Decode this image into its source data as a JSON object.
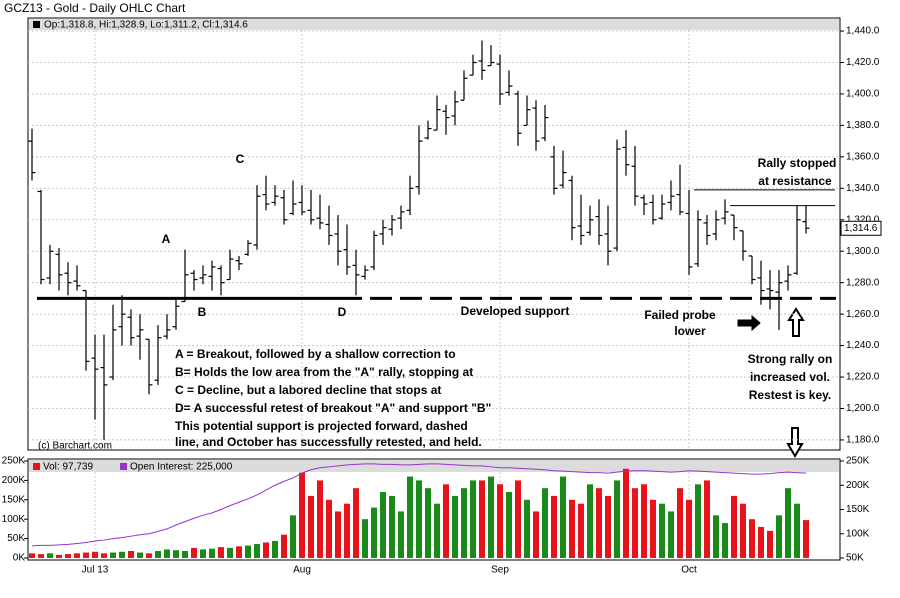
{
  "chart_data": {
    "type": "ohlc",
    "title": "GCZ13 - Gold - Daily OHLC Chart",
    "quote": "Op:1,318.8, Hi:1,328.9, Lo:1,311.2, Cl:1,314.6",
    "source": "(c) Barchart.com",
    "categories": [
      null,
      null,
      null,
      null,
      null,
      null,
      null,
      "Jul 13",
      null,
      null,
      null,
      null,
      null,
      null,
      null,
      null,
      null,
      null,
      null,
      null,
      null,
      null,
      null,
      null,
      null,
      null,
      null,
      null,
      null,
      null,
      "Aug",
      null,
      null,
      null,
      null,
      null,
      null,
      null,
      null,
      null,
      null,
      null,
      null,
      null,
      null,
      null,
      null,
      null,
      null,
      null,
      null,
      null,
      "Sep",
      null,
      null,
      null,
      null,
      null,
      null,
      null,
      null,
      null,
      null,
      null,
      null,
      null,
      null,
      null,
      null,
      null,
      null,
      null,
      null,
      "Oct",
      null,
      null,
      null,
      null,
      null,
      null,
      null,
      null,
      null,
      null,
      null,
      null,
      null
    ],
    "open": [
      1370,
      1338,
      1283,
      1298,
      1286,
      1281,
      1275,
      1232,
      1226,
      1220,
      1252,
      1258,
      1246,
      1244,
      1218,
      1246,
      1252,
      1268,
      1286,
      1283,
      1284,
      1289,
      1282,
      1294,
      1298,
      1304,
      1336,
      1331,
      1334,
      1324,
      1331,
      1326,
      1321,
      1317,
      1311,
      1301,
      1291,
      1284,
      1290,
      1311,
      1314,
      1321,
      1326,
      1341,
      1372,
      1377,
      1389,
      1386,
      1396,
      1412,
      1421,
      1418,
      1419,
      1401,
      1400,
      1380,
      1391,
      1372,
      1360,
      1342,
      1345,
      1316,
      1312,
      1322,
      1311,
      1302,
      1366,
      1354,
      1334,
      1331,
      1321,
      1331,
      1336,
      1324,
      1292,
      1318,
      1311,
      1321,
      1323,
      1313,
      1297,
      1283,
      1276,
      1274,
      1281,
      1286,
      1318.8
    ],
    "high": [
      1378,
      1339,
      1304,
      1302,
      1293,
      1291,
      1275,
      1247,
      1247,
      1266,
      1272,
      1263,
      1260,
      1244,
      1253,
      1260,
      1269,
      1301,
      1288,
      1291,
      1294,
      1291,
      1301,
      1297,
      1307,
      1342,
      1348,
      1342,
      1339,
      1345,
      1342,
      1339,
      1336,
      1329,
      1323,
      1317,
      1301,
      1291,
      1313,
      1320,
      1323,
      1329,
      1348,
      1380,
      1383,
      1399,
      1393,
      1402,
      1415,
      1425,
      1434,
      1431,
      1425,
      1415,
      1402,
      1399,
      1396,
      1393,
      1367,
      1364,
      1348,
      1336,
      1329,
      1333,
      1329,
      1371,
      1377,
      1367,
      1336,
      1336,
      1336,
      1345,
      1355,
      1339,
      1326,
      1323,
      1326,
      1333,
      1323,
      1313,
      1297,
      1294,
      1288,
      1288,
      1291,
      1329,
      1328.9
    ],
    "low": [
      1345,
      1279,
      1279,
      1275,
      1272,
      1275,
      1224,
      1193,
      1180,
      1218,
      1240,
      1240,
      1231,
      1209,
      1215,
      1244,
      1250,
      1268,
      1275,
      1279,
      1275,
      1272,
      1282,
      1288,
      1297,
      1301,
      1326,
      1329,
      1317,
      1323,
      1323,
      1317,
      1314,
      1304,
      1291,
      1285,
      1272,
      1282,
      1288,
      1304,
      1310,
      1314,
      1323,
      1336,
      1371,
      1377,
      1374,
      1380,
      1396,
      1412,
      1409,
      1418,
      1393,
      1399,
      1367,
      1380,
      1364,
      1370,
      1336,
      1340,
      1307,
      1304,
      1310,
      1304,
      1291,
      1300,
      1348,
      1329,
      1323,
      1317,
      1320,
      1326,
      1323,
      1285,
      1290,
      1304,
      1307,
      1317,
      1307,
      1294,
      1279,
      1266,
      1263,
      1250,
      1275,
      1285,
      1311.2
    ],
    "close": [
      1350,
      1282,
      1300,
      1285,
      1280,
      1278,
      1230,
      1225,
      1215,
      1250,
      1260,
      1245,
      1250,
      1215,
      1245,
      1250,
      1265,
      1285,
      1282,
      1285,
      1290,
      1280,
      1295,
      1292,
      1305,
      1335,
      1330,
      1335,
      1320,
      1330,
      1325,
      1320,
      1318,
      1310,
      1300,
      1290,
      1285,
      1288,
      1310,
      1315,
      1320,
      1325,
      1340,
      1370,
      1378,
      1390,
      1385,
      1395,
      1410,
      1420,
      1415,
      1420,
      1400,
      1405,
      1375,
      1390,
      1370,
      1385,
      1340,
      1350,
      1315,
      1310,
      1320,
      1310,
      1300,
      1365,
      1355,
      1335,
      1330,
      1320,
      1330,
      1335,
      1325,
      1290,
      1320,
      1310,
      1320,
      1325,
      1315,
      1300,
      1282,
      1275,
      1275,
      1280,
      1285,
      1320,
      1314.6
    ],
    "color": "#000000",
    "ylim": [
      1173.6,
      1448.3
    ],
    "yticks": [
      {
        "value": 1180,
        "label": "1,180.0"
      },
      {
        "value": 1200,
        "label": "1,200.0"
      },
      {
        "value": 1220,
        "label": "1,220.0"
      },
      {
        "value": 1240,
        "label": "1,240.0"
      },
      {
        "value": 1260,
        "label": "1,260.0"
      },
      {
        "value": 1280,
        "label": "1,280.0"
      },
      {
        "value": 1300,
        "label": "1,300.0"
      },
      {
        "value": 1320,
        "label": "1,320.0"
      },
      {
        "value": 1340,
        "label": "1,340.0"
      },
      {
        "value": 1360,
        "label": "1,360.0"
      },
      {
        "value": 1380,
        "label": "1,380.0"
      },
      {
        "value": 1400,
        "label": "1,400.0"
      },
      {
        "value": 1420,
        "label": "1,420.0"
      },
      {
        "value": 1440,
        "label": "1,440.0"
      }
    ],
    "grid": true,
    "last_price": {
      "value": 1314.6,
      "label": "1,314.6"
    },
    "support_level": 1270,
    "resistance_levels": [
      1339,
      1329
    ],
    "annotations": [
      "A",
      "B",
      "C",
      "D",
      "Developed support",
      "Failed probe",
      "lower",
      "Rally stopped",
      "at resistance",
      "Strong rally on",
      "increased vol.",
      "Restest is key.",
      "A = Breakout, followed by a shallow correction to",
      "B= Holds the low area from the \"A\" rally, stopping at",
      "C = Decline, but a labored decline that stops at",
      "D= A successful retest of breakout \"A\" and support \"B\"",
      "This potential support is projected forward, dashed",
      "line, and October has successfully retested, and held."
    ],
    "volume": {
      "name": "Vol: 97,739",
      "up_color": "#1a8a1a",
      "down_color": "#e8141c",
      "values": [
        12000,
        10000,
        12000,
        8000,
        10000,
        12000,
        14000,
        16000,
        12000,
        14000,
        16000,
        18000,
        14000,
        12000,
        18000,
        22000,
        20000,
        18000,
        26000,
        22000,
        24000,
        28000,
        26000,
        30000,
        32000,
        36000,
        40000,
        44000,
        60000,
        110000,
        220000,
        160000,
        200000,
        150000,
        120000,
        140000,
        180000,
        100000,
        130000,
        170000,
        160000,
        120000,
        210000,
        200000,
        180000,
        140000,
        190000,
        160000,
        180000,
        200000,
        200000,
        210000,
        190000,
        170000,
        200000,
        150000,
        120000,
        180000,
        160000,
        210000,
        150000,
        140000,
        190000,
        180000,
        160000,
        200000,
        230000,
        180000,
        190000,
        150000,
        140000,
        120000,
        180000,
        150000,
        190000,
        200000,
        110000,
        90000,
        160000,
        140000,
        100000,
        80000,
        70000,
        110000,
        180000,
        140000,
        97739
      ],
      "ylim": [
        -5200,
        255200
      ],
      "yticks": [
        {
          "value": 0,
          "label": "0K"
        },
        {
          "value": 50000,
          "label": "50K"
        },
        {
          "value": 100000,
          "label": "100K"
        },
        {
          "value": 150000,
          "label": "150K"
        },
        {
          "value": 200000,
          "label": "200K"
        },
        {
          "value": 250000,
          "label": "250K"
        }
      ]
    },
    "open_interest": {
      "name": "Open Interest: 225,000",
      "color": "#9933cc",
      "axis": "y2",
      "values": [
        75000,
        76000,
        76000,
        77000,
        78000,
        80000,
        82000,
        85000,
        87000,
        90000,
        92000,
        95000,
        98000,
        100000,
        105000,
        110000,
        118000,
        125000,
        132000,
        138000,
        143000,
        150000,
        158000,
        165000,
        172000,
        180000,
        190000,
        200000,
        208000,
        215000,
        225000,
        232000,
        236000,
        238000,
        240000,
        242000,
        243000,
        244000,
        244000,
        243000,
        243000,
        242000,
        242000,
        243000,
        244000,
        244000,
        243000,
        242000,
        241000,
        240000,
        240000,
        238000,
        236000,
        236000,
        235000,
        234000,
        233000,
        232000,
        230000,
        229000,
        228000,
        227000,
        226000,
        226000,
        225000,
        227000,
        229000,
        230000,
        230000,
        229000,
        228000,
        227000,
        228000,
        230000,
        229000,
        228000,
        227000,
        226000,
        225000,
        224000,
        223000,
        223000,
        224000,
        226000,
        227000,
        226000,
        225000
      ],
      "y2lim": [
        45900,
        254100
      ],
      "y2ticks": [
        {
          "value": 50000,
          "label": "50K"
        },
        {
          "value": 100000,
          "label": "100K"
        },
        {
          "value": 150000,
          "label": "150K"
        },
        {
          "value": 200000,
          "label": "200K"
        },
        {
          "value": 250000,
          "label": "250K"
        }
      ]
    }
  }
}
